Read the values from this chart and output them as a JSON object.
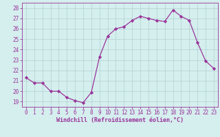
{
  "hours": [
    0,
    1,
    2,
    3,
    4,
    5,
    6,
    7,
    8,
    9,
    10,
    11,
    12,
    13,
    14,
    15,
    16,
    17,
    18,
    19,
    20,
    21,
    22,
    23
  ],
  "values": [
    21.3,
    20.8,
    20.8,
    20.0,
    20.0,
    19.4,
    19.1,
    18.9,
    19.9,
    23.3,
    25.3,
    26.0,
    26.2,
    26.8,
    27.2,
    27.0,
    26.8,
    26.7,
    27.8,
    27.2,
    26.8,
    24.7,
    22.9,
    22.2
  ],
  "line_color": "#993399",
  "marker": "D",
  "marker_size": 2.2,
  "bg_color": "#d5eeee",
  "grid_color": "#b0d0d0",
  "xlabel": "Windchill (Refroidissement éolien,°C)",
  "xlabel_fontsize": 6.0,
  "tick_fontsize": 5.5,
  "ylim": [
    18.5,
    28.5
  ],
  "yticks": [
    19,
    20,
    21,
    22,
    23,
    24,
    25,
    26,
    27,
    28
  ],
  "xlim": [
    -0.5,
    23.5
  ],
  "xticks": [
    0,
    1,
    2,
    3,
    4,
    5,
    6,
    7,
    8,
    9,
    10,
    11,
    12,
    13,
    14,
    15,
    16,
    17,
    18,
    19,
    20,
    21,
    22,
    23
  ]
}
